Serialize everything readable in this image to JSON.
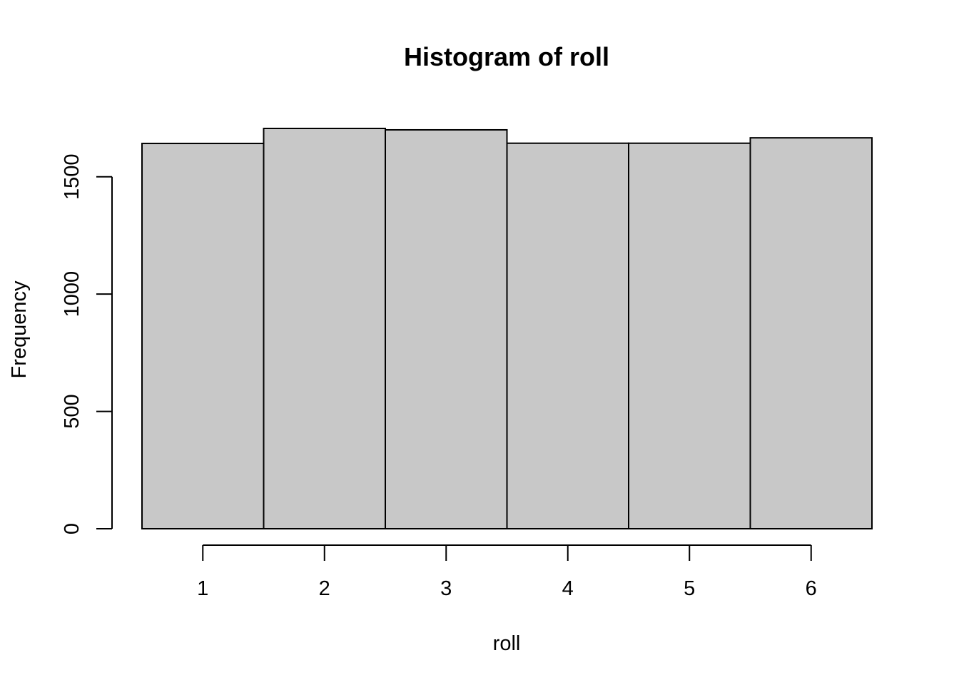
{
  "chart_data": {
    "type": "bar",
    "title": "Histogram of roll",
    "xlabel": "roll",
    "ylabel": "Frequency",
    "categories": [
      "1",
      "2",
      "3",
      "4",
      "5",
      "6"
    ],
    "bins": [
      [
        0.5,
        1.5
      ],
      [
        1.5,
        2.5
      ],
      [
        2.5,
        3.5
      ],
      [
        3.5,
        4.5
      ],
      [
        4.5,
        5.5
      ],
      [
        5.5,
        6.5
      ]
    ],
    "values": [
      1642,
      1706,
      1700,
      1643,
      1643,
      1666
    ],
    "x_ticks": [
      1,
      2,
      3,
      4,
      5,
      6
    ],
    "x_tick_labels": [
      "1",
      "2",
      "3",
      "4",
      "5",
      "6"
    ],
    "y_ticks": [
      0,
      500,
      1000,
      1500
    ],
    "y_tick_labels": [
      "0",
      "500",
      "1000",
      "1500"
    ],
    "xlim": [
      0.5,
      6.5
    ],
    "ylim": [
      0,
      1706
    ],
    "bar_color": "#c8c8c8",
    "border_color": "#000000",
    "grid": false
  }
}
